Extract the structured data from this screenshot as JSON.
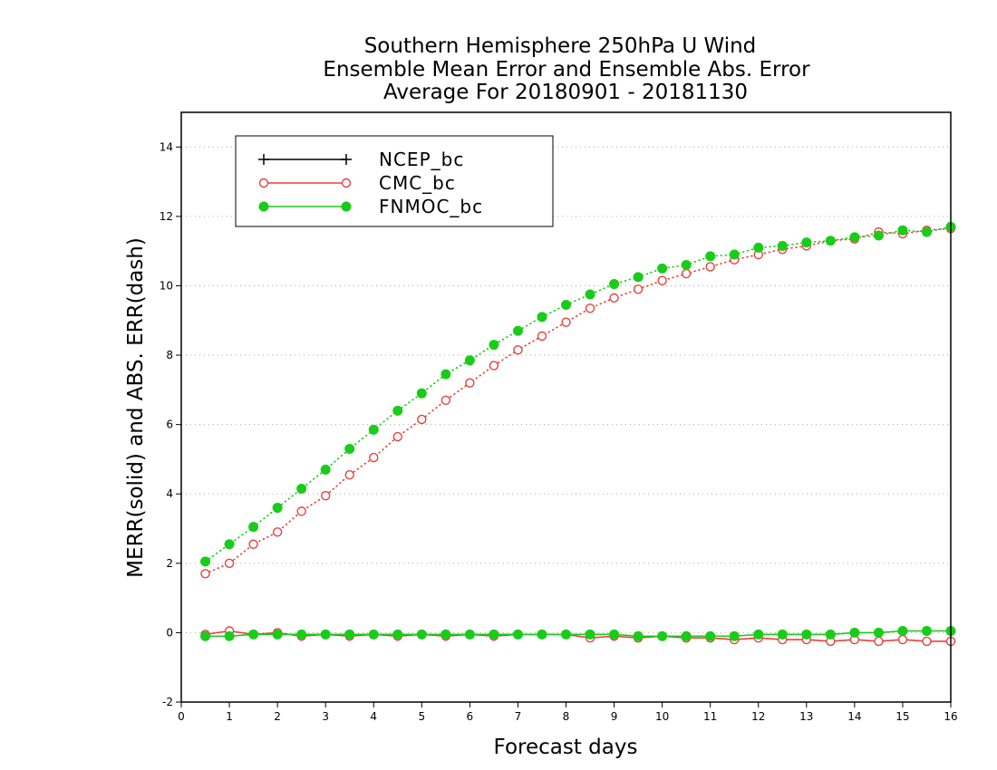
{
  "chart_data": {
    "type": "line",
    "title": [
      "Southern Hemisphere 250hPa U Wind",
      "Ensemble Mean Error and Ensemble Abs. Error",
      "Average For 20180901 - 20181130"
    ],
    "xlabel": "Forecast days",
    "ylabel": "MERR(solid) and ABS. ERR(dash)",
    "xlim": [
      0,
      16
    ],
    "ylim": [
      -2,
      15
    ],
    "x_ticks": [
      0,
      1,
      2,
      3,
      4,
      5,
      6,
      7,
      8,
      9,
      10,
      11,
      12,
      13,
      14,
      15,
      16
    ],
    "y_ticks": [
      -2,
      0,
      2,
      4,
      6,
      8,
      10,
      12,
      14
    ],
    "grid": "horizontal dotted",
    "legend": {
      "placement": "top-left",
      "entries": [
        {
          "name": "NCEP_bc",
          "color": "#000000",
          "marker": "plus"
        },
        {
          "name": "CMC_bc",
          "color": "#e8403c",
          "marker": "open-circle"
        },
        {
          "name": "FNMOC_bc",
          "color": "#19cc19",
          "marker": "filled-circle"
        }
      ]
    },
    "x": [
      0.5,
      1,
      1.5,
      2,
      2.5,
      3,
      3.5,
      4,
      4.5,
      5,
      5.5,
      6,
      6.5,
      7,
      7.5,
      8,
      8.5,
      9,
      9.5,
      10,
      10.5,
      11,
      11.5,
      12,
      12.5,
      13,
      13.5,
      14,
      14.5,
      15,
      15.5,
      16
    ],
    "series": [
      {
        "name": "CMC_bc",
        "style": "dash",
        "color": "#e8403c",
        "marker": "open-circle",
        "values": [
          1.7,
          2.0,
          2.55,
          2.9,
          3.5,
          3.95,
          4.55,
          5.05,
          5.65,
          6.15,
          6.7,
          7.2,
          7.7,
          8.15,
          8.55,
          8.95,
          9.35,
          9.65,
          9.9,
          10.15,
          10.35,
          10.55,
          10.75,
          10.9,
          11.05,
          11.15,
          11.3,
          11.35,
          11.55,
          11.5,
          11.6,
          11.65
        ]
      },
      {
        "name": "FNMOC_bc",
        "style": "dash",
        "color": "#19cc19",
        "marker": "filled-circle",
        "values": [
          2.05,
          2.55,
          3.05,
          3.6,
          4.15,
          4.7,
          5.3,
          5.85,
          6.4,
          6.9,
          7.45,
          7.85,
          8.3,
          8.7,
          9.1,
          9.45,
          9.75,
          10.05,
          10.25,
          10.5,
          10.6,
          10.85,
          10.9,
          11.1,
          11.15,
          11.25,
          11.3,
          11.4,
          11.45,
          11.6,
          11.55,
          11.7
        ]
      },
      {
        "name": "CMC_bc",
        "style": "solid",
        "color": "#e8403c",
        "marker": "open-circle",
        "values": [
          -0.05,
          0.05,
          -0.05,
          0.0,
          -0.1,
          -0.05,
          -0.1,
          -0.05,
          -0.1,
          -0.05,
          -0.1,
          -0.05,
          -0.1,
          -0.05,
          -0.05,
          -0.05,
          -0.15,
          -0.1,
          -0.15,
          -0.1,
          -0.15,
          -0.15,
          -0.2,
          -0.15,
          -0.2,
          -0.2,
          -0.25,
          -0.2,
          -0.25,
          -0.2,
          -0.25,
          -0.25
        ]
      },
      {
        "name": "FNMOC_bc",
        "style": "solid",
        "color": "#19cc19",
        "marker": "filled-circle",
        "values": [
          -0.1,
          -0.1,
          -0.05,
          -0.05,
          -0.05,
          -0.05,
          -0.05,
          -0.05,
          -0.05,
          -0.05,
          -0.05,
          -0.05,
          -0.05,
          -0.05,
          -0.05,
          -0.05,
          -0.05,
          -0.05,
          -0.1,
          -0.1,
          -0.1,
          -0.1,
          -0.1,
          -0.05,
          -0.05,
          -0.05,
          -0.05,
          0.0,
          0.0,
          0.05,
          0.05,
          0.05
        ]
      }
    ]
  }
}
